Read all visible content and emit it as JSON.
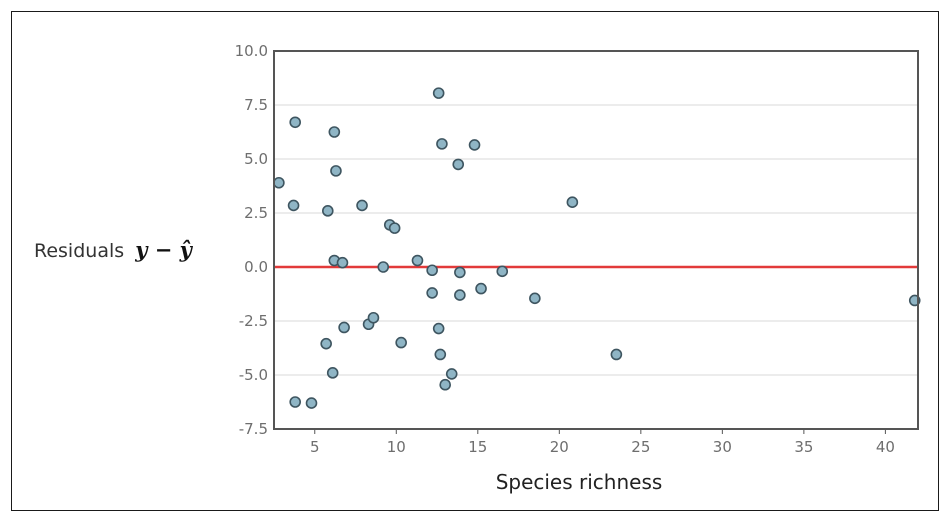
{
  "chart_data": {
    "type": "scatter",
    "title": "",
    "xlabel": "Species richness",
    "ylabel_text": "Residuals",
    "ylabel_math": "y − ŷ",
    "xlim": [
      2.5,
      42
    ],
    "ylim": [
      -7.5,
      10
    ],
    "xticks": [
      5,
      10,
      15,
      20,
      25,
      30,
      35,
      40
    ],
    "yticks": [
      10.0,
      7.5,
      5.0,
      2.5,
      0.0,
      -2.5,
      -5.0,
      -7.5
    ],
    "reference_line_y": 0,
    "grid": "horizontal",
    "colors": {
      "point_fill": "#8fb5c5",
      "point_stroke": "#3e5560",
      "reference_line": "#e23a3a",
      "grid": "#d9d9d9",
      "axis": "#555555"
    },
    "points": [
      {
        "x": 2.8,
        "y": 3.9
      },
      {
        "x": 3.7,
        "y": 2.85
      },
      {
        "x": 3.8,
        "y": 6.7
      },
      {
        "x": 3.8,
        "y": -6.25
      },
      {
        "x": 4.8,
        "y": -6.3
      },
      {
        "x": 5.7,
        "y": -3.55
      },
      {
        "x": 5.8,
        "y": 2.6
      },
      {
        "x": 6.1,
        "y": -4.9
      },
      {
        "x": 6.2,
        "y": 6.25
      },
      {
        "x": 6.2,
        "y": 0.3
      },
      {
        "x": 6.3,
        "y": 4.45
      },
      {
        "x": 6.7,
        "y": 0.2
      },
      {
        "x": 6.8,
        "y": -2.8
      },
      {
        "x": 7.9,
        "y": 2.85
      },
      {
        "x": 8.3,
        "y": -2.65
      },
      {
        "x": 8.6,
        "y": -2.35
      },
      {
        "x": 9.2,
        "y": 0.0
      },
      {
        "x": 9.6,
        "y": 1.95
      },
      {
        "x": 9.9,
        "y": 1.8
      },
      {
        "x": 10.3,
        "y": -3.5
      },
      {
        "x": 11.3,
        "y": 0.3
      },
      {
        "x": 12.2,
        "y": -0.15
      },
      {
        "x": 12.2,
        "y": -1.2
      },
      {
        "x": 12.6,
        "y": 8.05
      },
      {
        "x": 12.6,
        "y": -2.85
      },
      {
        "x": 12.7,
        "y": -4.05
      },
      {
        "x": 12.8,
        "y": 5.7
      },
      {
        "x": 13.0,
        "y": -5.45
      },
      {
        "x": 13.4,
        "y": -4.95
      },
      {
        "x": 13.8,
        "y": 4.75
      },
      {
        "x": 13.9,
        "y": -0.25
      },
      {
        "x": 13.9,
        "y": -1.3
      },
      {
        "x": 14.8,
        "y": 5.65
      },
      {
        "x": 15.2,
        "y": -1.0
      },
      {
        "x": 16.5,
        "y": -0.2
      },
      {
        "x": 18.5,
        "y": -1.45
      },
      {
        "x": 20.8,
        "y": 3.0
      },
      {
        "x": 23.5,
        "y": -4.05
      },
      {
        "x": 41.8,
        "y": -1.55
      }
    ]
  }
}
